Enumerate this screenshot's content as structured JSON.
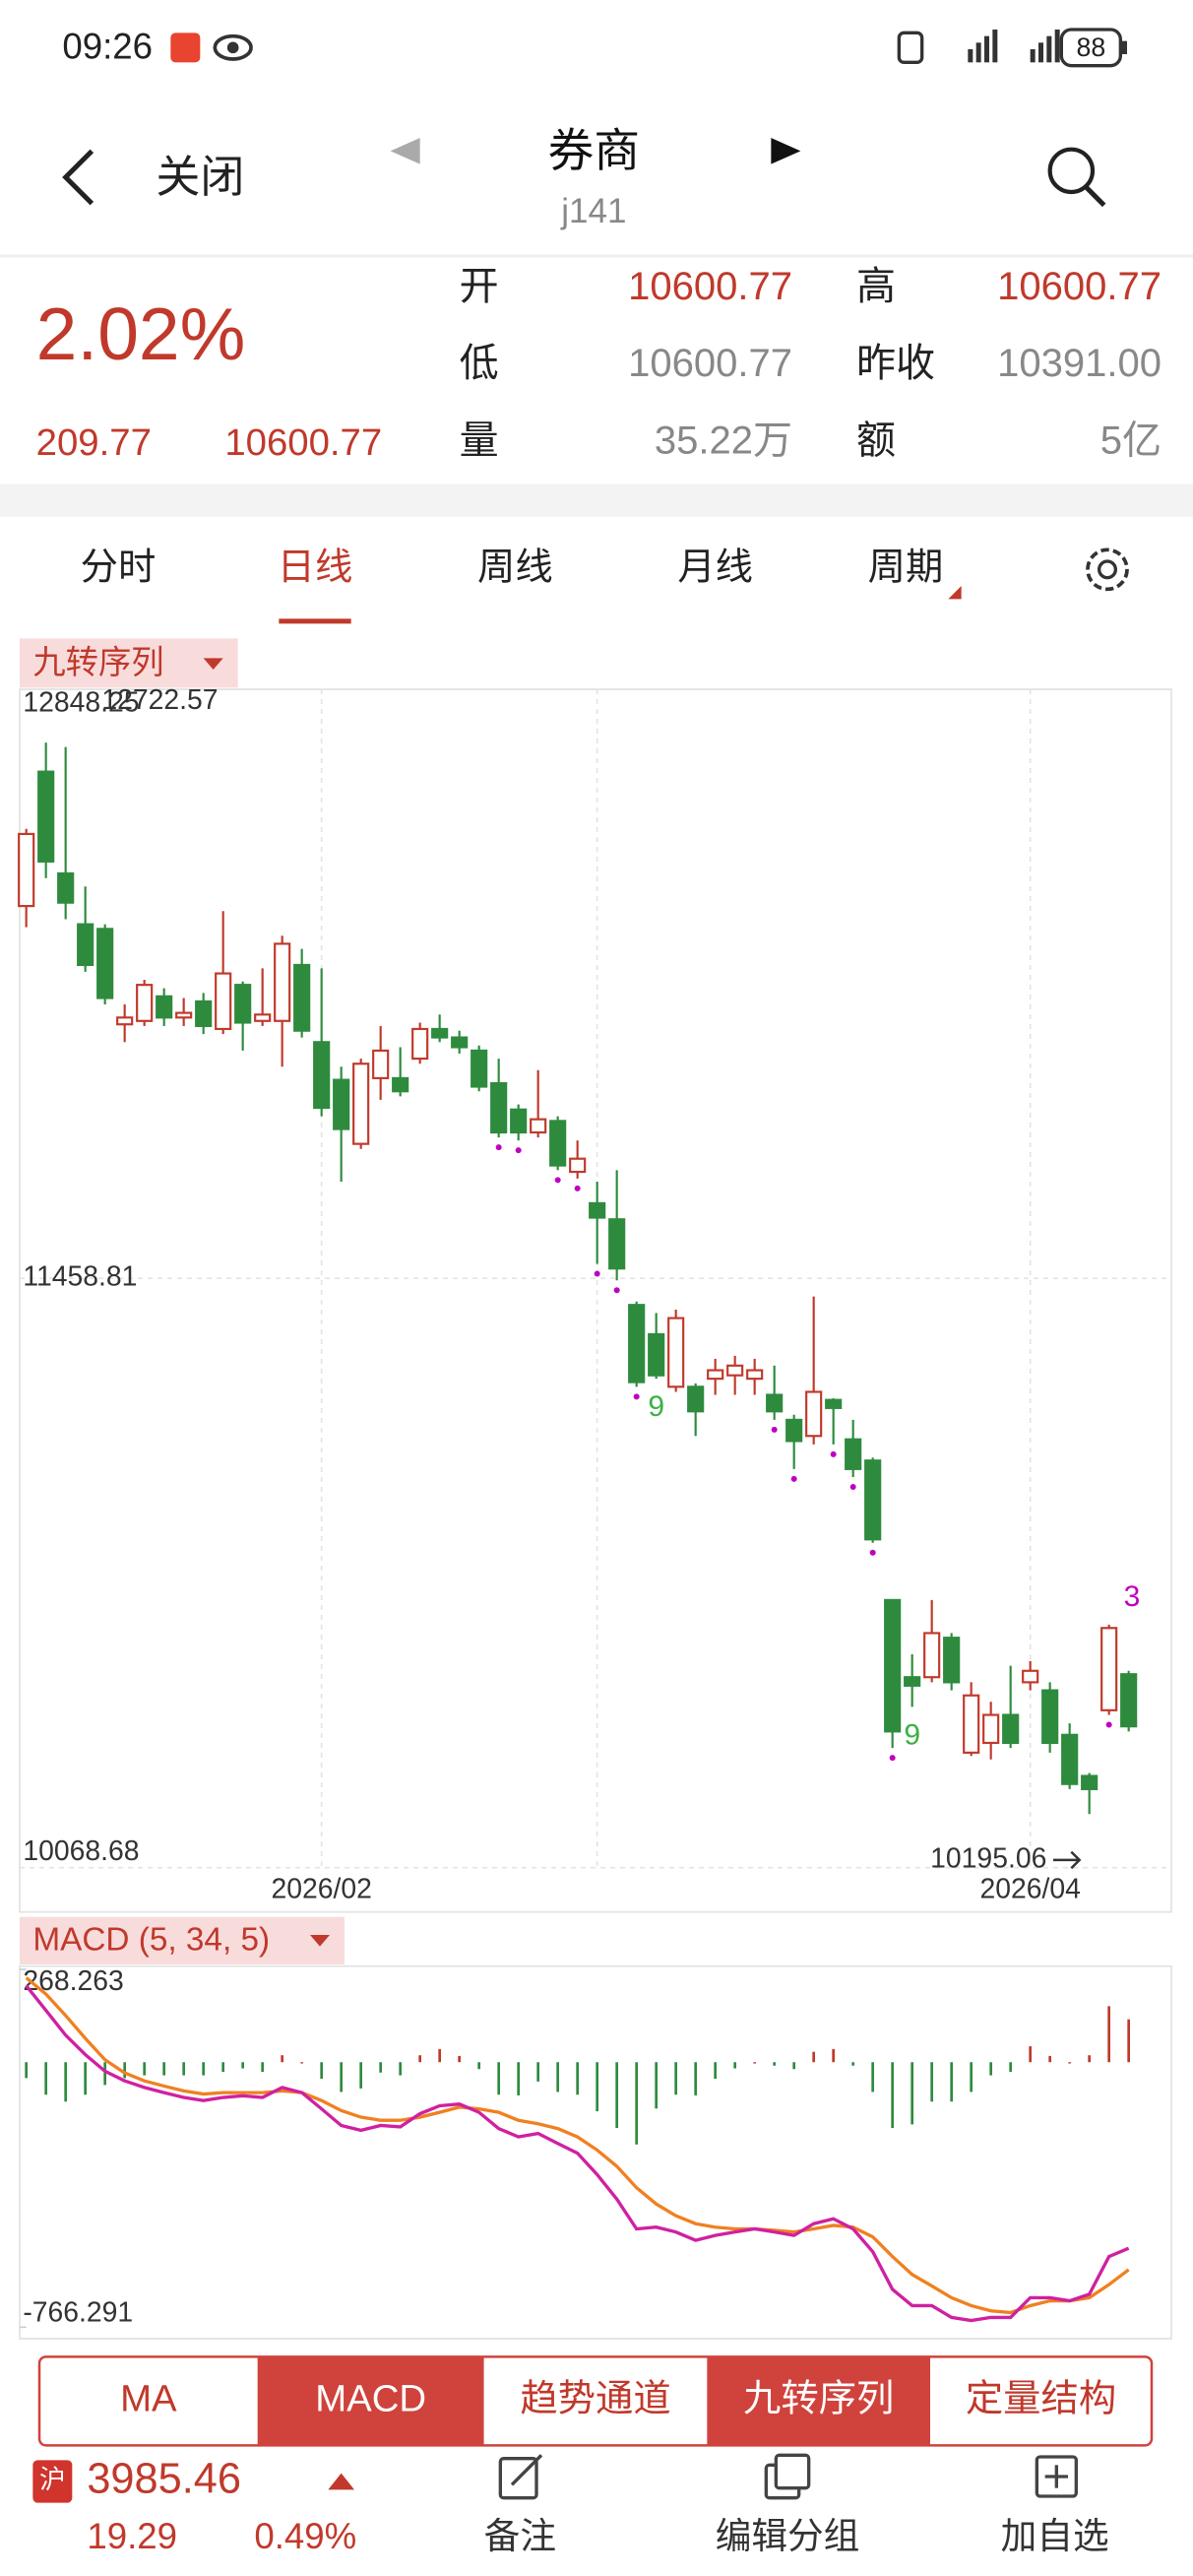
{
  "status_bar": {
    "time": "09:26",
    "battery": "88"
  },
  "header": {
    "close_label": "关闭",
    "title": "券商",
    "subtitle": "j141"
  },
  "quote": {
    "change_pct": "2.02%",
    "change": "209.77",
    "price": "10600.77",
    "fields": [
      {
        "label": "开",
        "value": "10600.77",
        "color": "#c0392b"
      },
      {
        "label": "高",
        "value": "10600.77",
        "color": "#c0392b"
      },
      {
        "label": "低",
        "value": "10600.77",
        "color": "#888888"
      },
      {
        "label": "昨收",
        "value": "10391.00",
        "color": "#888888"
      },
      {
        "label": "量",
        "value": "35.22万",
        "color": "#888888"
      },
      {
        "label": "额",
        "value": "5亿",
        "color": "#888888"
      }
    ]
  },
  "tabs": [
    "分时",
    "日线",
    "周线",
    "月线",
    "周期"
  ],
  "active_tab": 1,
  "chart_data": [
    {
      "type": "candlestick",
      "indicator": "九转序列",
      "categories": [
        null,
        null,
        null,
        null,
        null,
        null,
        null,
        null,
        null,
        null,
        null,
        null,
        null,
        null,
        null,
        "2026/02",
        null,
        null,
        null,
        null,
        null,
        null,
        null,
        null,
        null,
        null,
        null,
        null,
        null,
        null,
        null,
        null,
        null,
        null,
        null,
        null,
        null,
        null,
        null,
        null,
        null,
        null,
        null,
        null,
        null,
        null,
        null,
        null,
        null,
        null,
        null,
        "2026/04",
        null,
        null,
        null,
        null,
        null
      ],
      "open": [
        12337,
        12654,
        12414,
        12294,
        12283,
        12058,
        12066,
        12124,
        12074,
        12112,
        12047,
        12151,
        12066,
        12066,
        12198,
        12016,
        11927,
        11776,
        11931,
        11931,
        11977,
        12047,
        12027,
        11996,
        11919,
        11857,
        11803,
        11830,
        11710,
        11636,
        11598,
        11396,
        11327,
        11203,
        11203,
        11222,
        11230,
        11222,
        11184,
        11125,
        11087,
        11172,
        11079,
        11029,
        10700,
        10518,
        10518,
        10611,
        10340,
        10363,
        10429,
        10506,
        10487,
        10382,
        10285,
        10440,
        10525
      ],
      "high": [
        12519,
        12722.57,
        12712,
        12383,
        12294,
        12105,
        12163,
        12143,
        12120,
        12132,
        12325,
        12159,
        12190,
        12267,
        12236,
        12190,
        11958,
        11977,
        12054,
        12004,
        12062,
        12081,
        12043,
        12008,
        11977,
        11869,
        11950,
        11841,
        11784,
        11687,
        11714,
        11404,
        11377,
        11385,
        11211,
        11269,
        11276,
        11269,
        11253,
        11137,
        11416,
        11176,
        11125,
        11036,
        10700,
        10572,
        10700,
        10622,
        10506,
        10460,
        10545,
        10556,
        10506,
        10409,
        10292,
        10642,
        10533
      ],
      "low": [
        12287,
        12403,
        12306,
        12182,
        12105,
        12016,
        12054,
        12054,
        12054,
        12035,
        12035,
        11996,
        12054,
        11958,
        12027,
        11841,
        11687,
        11764,
        11880,
        11888,
        11965,
        12016,
        11989,
        11900,
        11791,
        11784,
        11791,
        11714,
        11694,
        11493,
        11454,
        11203,
        11222,
        11191,
        11087,
        11184,
        11184,
        11184,
        11125,
        11009,
        11067,
        11067,
        10990,
        10835,
        10351,
        10448,
        10506,
        10487,
        10332,
        10324,
        10351,
        10487,
        10340,
        10254,
        10195.06,
        10429,
        10390
      ],
      "close": [
        12507,
        12442,
        12345,
        12198,
        12120,
        12074,
        12151,
        12074,
        12085,
        12054,
        12178,
        12062,
        12081,
        12248,
        12043,
        11861,
        11811,
        11965,
        11996,
        11900,
        12047,
        12027,
        12004,
        11911,
        11803,
        11803,
        11834,
        11725,
        11741,
        11602,
        11482,
        11214,
        11230,
        11365,
        11145,
        11242,
        11253,
        11242,
        11145,
        11075,
        11191,
        11153,
        11009,
        10843,
        10390,
        10498,
        10622,
        10506,
        10475,
        10429,
        10363,
        10533,
        10363,
        10266,
        10254,
        10634,
        10402
      ],
      "up_color": "#c0392b",
      "down_color": "#2e8b3e",
      "ylim": [
        10068.68,
        12848.25
      ],
      "yticks": [
        12848.25,
        11458.81,
        10068.68
      ],
      "grid": true,
      "xgrid": [
        15,
        29,
        51
      ],
      "high_index": 1,
      "low_index": 54,
      "signal_dots": [
        24,
        25,
        27,
        28,
        29,
        30,
        31,
        38,
        39,
        41,
        42,
        43,
        44,
        55
      ],
      "dot_color": "#c000c0",
      "signals": [
        {
          "index": 32,
          "label": "9",
          "color": "#3cb043"
        },
        {
          "index": 45,
          "label": "9",
          "color": "#3cb043"
        },
        {
          "index": 55,
          "label": "3",
          "color": "#c000c0"
        }
      ]
    },
    {
      "type": "macd",
      "title": "MACD (5, 34, 5)",
      "dif": [
        221,
        150,
        78,
        22,
        -26,
        -54,
        -73,
        -88,
        -102,
        -111,
        -102,
        -97,
        -102,
        -73,
        -88,
        -135,
        -183,
        -197,
        -183,
        -187,
        -149,
        -126,
        -121,
        -145,
        -192,
        -216,
        -206,
        -235,
        -263,
        -325,
        -396,
        -482,
        -477,
        -491,
        -515,
        -501,
        -491,
        -482,
        -491,
        -501,
        -467,
        -453,
        -482,
        -548,
        -657,
        -704,
        -704,
        -738,
        -747,
        -738,
        -738,
        -681,
        -681,
        -690,
        -671,
        -562,
        -538
      ],
      "dea": [
        244,
        197,
        135,
        69,
        7,
        -31,
        -54,
        -69,
        -83,
        -92,
        -88,
        -88,
        -88,
        -83,
        -88,
        -111,
        -140,
        -159,
        -168,
        -168,
        -159,
        -145,
        -130,
        -135,
        -145,
        -168,
        -178,
        -192,
        -216,
        -254,
        -301,
        -363,
        -410,
        -444,
        -467,
        -477,
        -482,
        -482,
        -486,
        -491,
        -482,
        -472,
        -477,
        -505,
        -562,
        -614,
        -647,
        -681,
        -704,
        -719,
        -724,
        -704,
        -690,
        -690,
        -681,
        -643,
        -600
      ],
      "hist": [
        -46,
        -94,
        -114,
        -94,
        -66,
        -46,
        -38,
        -38,
        -38,
        -38,
        -28,
        -18,
        -28,
        20,
        0,
        -48,
        -86,
        -76,
        -30,
        -38,
        20,
        38,
        18,
        -20,
        -94,
        -96,
        -56,
        -86,
        -94,
        -142,
        -190,
        -238,
        -134,
        -94,
        -96,
        -48,
        -18,
        0,
        -10,
        -20,
        30,
        38,
        -10,
        -86,
        -190,
        -180,
        -114,
        -114,
        -86,
        -38,
        -28,
        46,
        18,
        0,
        20,
        162,
        124
      ],
      "dif_color": "#d020a0",
      "dea_color": "#f08020",
      "up_color": "#c0392b",
      "down_color": "#2e8b3e",
      "ylim": [
        -766.291,
        268.263
      ],
      "yticks": [
        268.263,
        -766.291
      ]
    }
  ],
  "indicator_buttons": [
    {
      "label": "MA",
      "active": false
    },
    {
      "label": "MACD",
      "active": true
    },
    {
      "label": "趋势通道",
      "active": false
    },
    {
      "label": "九转序列",
      "active": true
    },
    {
      "label": "定量结构",
      "active": false
    }
  ],
  "footer": {
    "badge": "沪",
    "index_value": "3985.46",
    "index_change": "19.29",
    "index_pct": "0.49%",
    "actions": [
      "备注",
      "编辑分组",
      "加自选"
    ]
  }
}
